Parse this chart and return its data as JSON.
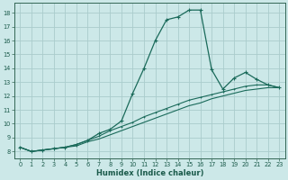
{
  "xlabel": "Humidex (Indice chaleur)",
  "bg_color": "#cce8e8",
  "grid_color": "#aacccc",
  "line_color": "#1a6a5a",
  "xlim": [
    -0.5,
    23.5
  ],
  "ylim": [
    7.5,
    18.7
  ],
  "xticks": [
    0,
    1,
    2,
    3,
    4,
    5,
    6,
    7,
    8,
    9,
    10,
    11,
    12,
    13,
    14,
    15,
    16,
    17,
    18,
    19,
    20,
    21,
    22,
    23
  ],
  "yticks": [
    8,
    9,
    10,
    11,
    12,
    13,
    14,
    15,
    16,
    17,
    18
  ],
  "main_curve": {
    "x": [
      0,
      1,
      2,
      3,
      4,
      5,
      6,
      7,
      8,
      9,
      10,
      11,
      12,
      13,
      14,
      15,
      16,
      17,
      18,
      19,
      20,
      21,
      22,
      23
    ],
    "y": [
      8.3,
      8.0,
      8.1,
      8.2,
      8.3,
      8.5,
      8.8,
      9.3,
      9.6,
      10.2,
      12.2,
      14.0,
      16.0,
      17.5,
      17.7,
      18.2,
      18.2,
      13.9,
      12.5,
      13.3,
      13.7,
      13.2,
      12.8,
      12.6
    ]
  },
  "line2": {
    "x": [
      0,
      1,
      2,
      3,
      4,
      5,
      6,
      7,
      8,
      9,
      10,
      11,
      12,
      13,
      14,
      15,
      16,
      17,
      18,
      19,
      20,
      21,
      22,
      23
    ],
    "y": [
      8.3,
      8.0,
      8.1,
      8.2,
      8.3,
      8.5,
      8.8,
      9.1,
      9.5,
      9.8,
      10.1,
      10.5,
      10.8,
      11.1,
      11.4,
      11.7,
      11.9,
      12.1,
      12.3,
      12.5,
      12.7,
      12.8,
      12.8,
      12.6
    ]
  },
  "line3": {
    "x": [
      0,
      1,
      2,
      3,
      4,
      5,
      6,
      7,
      8,
      9,
      10,
      11,
      12,
      13,
      14,
      15,
      16,
      17,
      18,
      19,
      20,
      21,
      22,
      23
    ],
    "y": [
      8.3,
      8.0,
      8.1,
      8.2,
      8.3,
      8.4,
      8.7,
      8.9,
      9.2,
      9.5,
      9.8,
      10.1,
      10.4,
      10.7,
      11.0,
      11.3,
      11.5,
      11.8,
      12.0,
      12.2,
      12.4,
      12.5,
      12.6,
      12.6
    ]
  }
}
